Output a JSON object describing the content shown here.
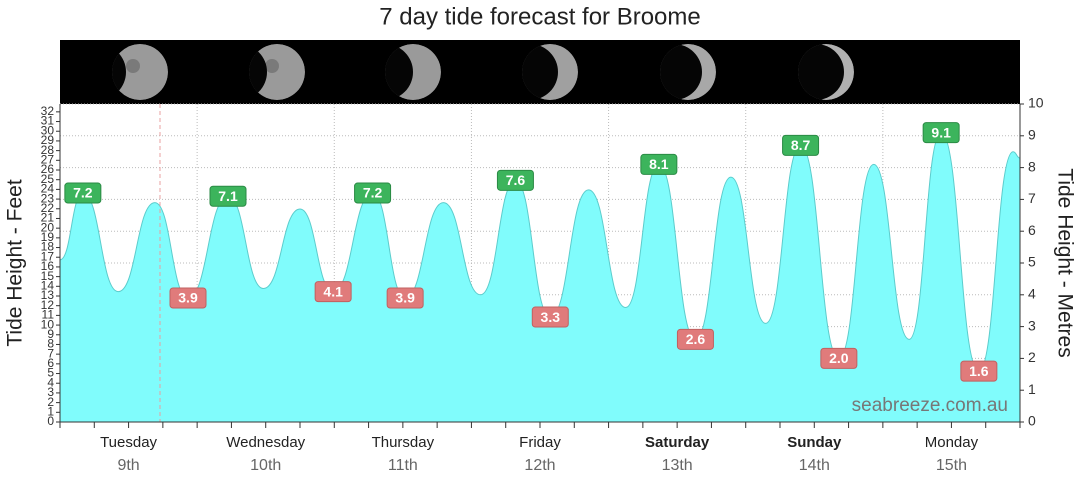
{
  "chart_data": {
    "type": "area",
    "title": "7 day tide forecast for Broome",
    "y_label": "Tide Height - Feet",
    "y2_label": "Tide Height - Metres",
    "watermark": "seabreeze.com.au",
    "xlim": [
      0,
      168
    ],
    "xticks": [
      0,
      6,
      12,
      18,
      24,
      30,
      36,
      42,
      48,
      54,
      60,
      66,
      72,
      78,
      84,
      90,
      96,
      102,
      108,
      114,
      120,
      126,
      132,
      138,
      144,
      150,
      156,
      162,
      168
    ],
    "xgrid": [
      24,
      48,
      72,
      96,
      120,
      144
    ],
    "now": 17.5,
    "ylim": [
      0,
      32.81
    ],
    "yticks": [
      0,
      1,
      2,
      3,
      4,
      5,
      6,
      7,
      8,
      9,
      10,
      11,
      12,
      13,
      14,
      15,
      16,
      17,
      18,
      19,
      20,
      21,
      22,
      23,
      24,
      25,
      26,
      27,
      28,
      29,
      30,
      31,
      32
    ],
    "y2lim": [
      0,
      10
    ],
    "y2ticks": [
      0,
      1,
      2,
      3,
      4,
      5,
      6,
      7,
      8,
      9,
      10
    ],
    "grid": true,
    "high_color": "#3cb45c",
    "low_color": "#e07b7b",
    "days": [
      {
        "name": "Tuesday",
        "date": "9th",
        "bold": false
      },
      {
        "name": "Wednesday",
        "date": "10th",
        "bold": false
      },
      {
        "name": "Thursday",
        "date": "11th",
        "bold": false
      },
      {
        "name": "Friday",
        "date": "12th",
        "bold": false
      },
      {
        "name": "Saturday",
        "date": "13th",
        "bold": true
      },
      {
        "name": "Sunday",
        "date": "14th",
        "bold": true
      },
      {
        "name": "Monday",
        "date": "15th",
        "bold": false
      }
    ],
    "series": [
      {
        "axis": "y2",
        "color": "#80fcfc",
        "x": [
          0,
          4.0,
          10.2,
          16.6,
          22.4,
          29.4,
          35.6,
          42.0,
          47.8,
          54.7,
          60.4,
          67.1,
          73.6,
          79.7,
          85.8,
          92.5,
          99.0,
          104.8,
          111.2,
          117.4,
          123.5,
          129.6,
          136.3,
          142.4,
          148.6,
          154.2,
          160.8,
          166.8,
          168
        ],
        "values": [
          5.1,
          7.2,
          4.1,
          6.9,
          3.9,
          7.1,
          4.2,
          6.7,
          4.1,
          7.2,
          3.9,
          6.9,
          4.0,
          7.6,
          3.3,
          7.3,
          3.6,
          8.1,
          2.6,
          7.7,
          3.1,
          8.7,
          2.0,
          8.1,
          2.6,
          9.1,
          1.6,
          8.5,
          8.3
        ],
        "value_labels": [
          null,
          "7.2",
          null,
          null,
          "3.9",
          "7.1",
          null,
          null,
          "4.1",
          "7.2",
          "3.9",
          null,
          null,
          "7.6",
          "3.3",
          null,
          null,
          "8.1",
          "2.6",
          null,
          null,
          "8.7",
          "2.0",
          null,
          null,
          "9.1",
          "1.6",
          null,
          null
        ]
      }
    ]
  }
}
